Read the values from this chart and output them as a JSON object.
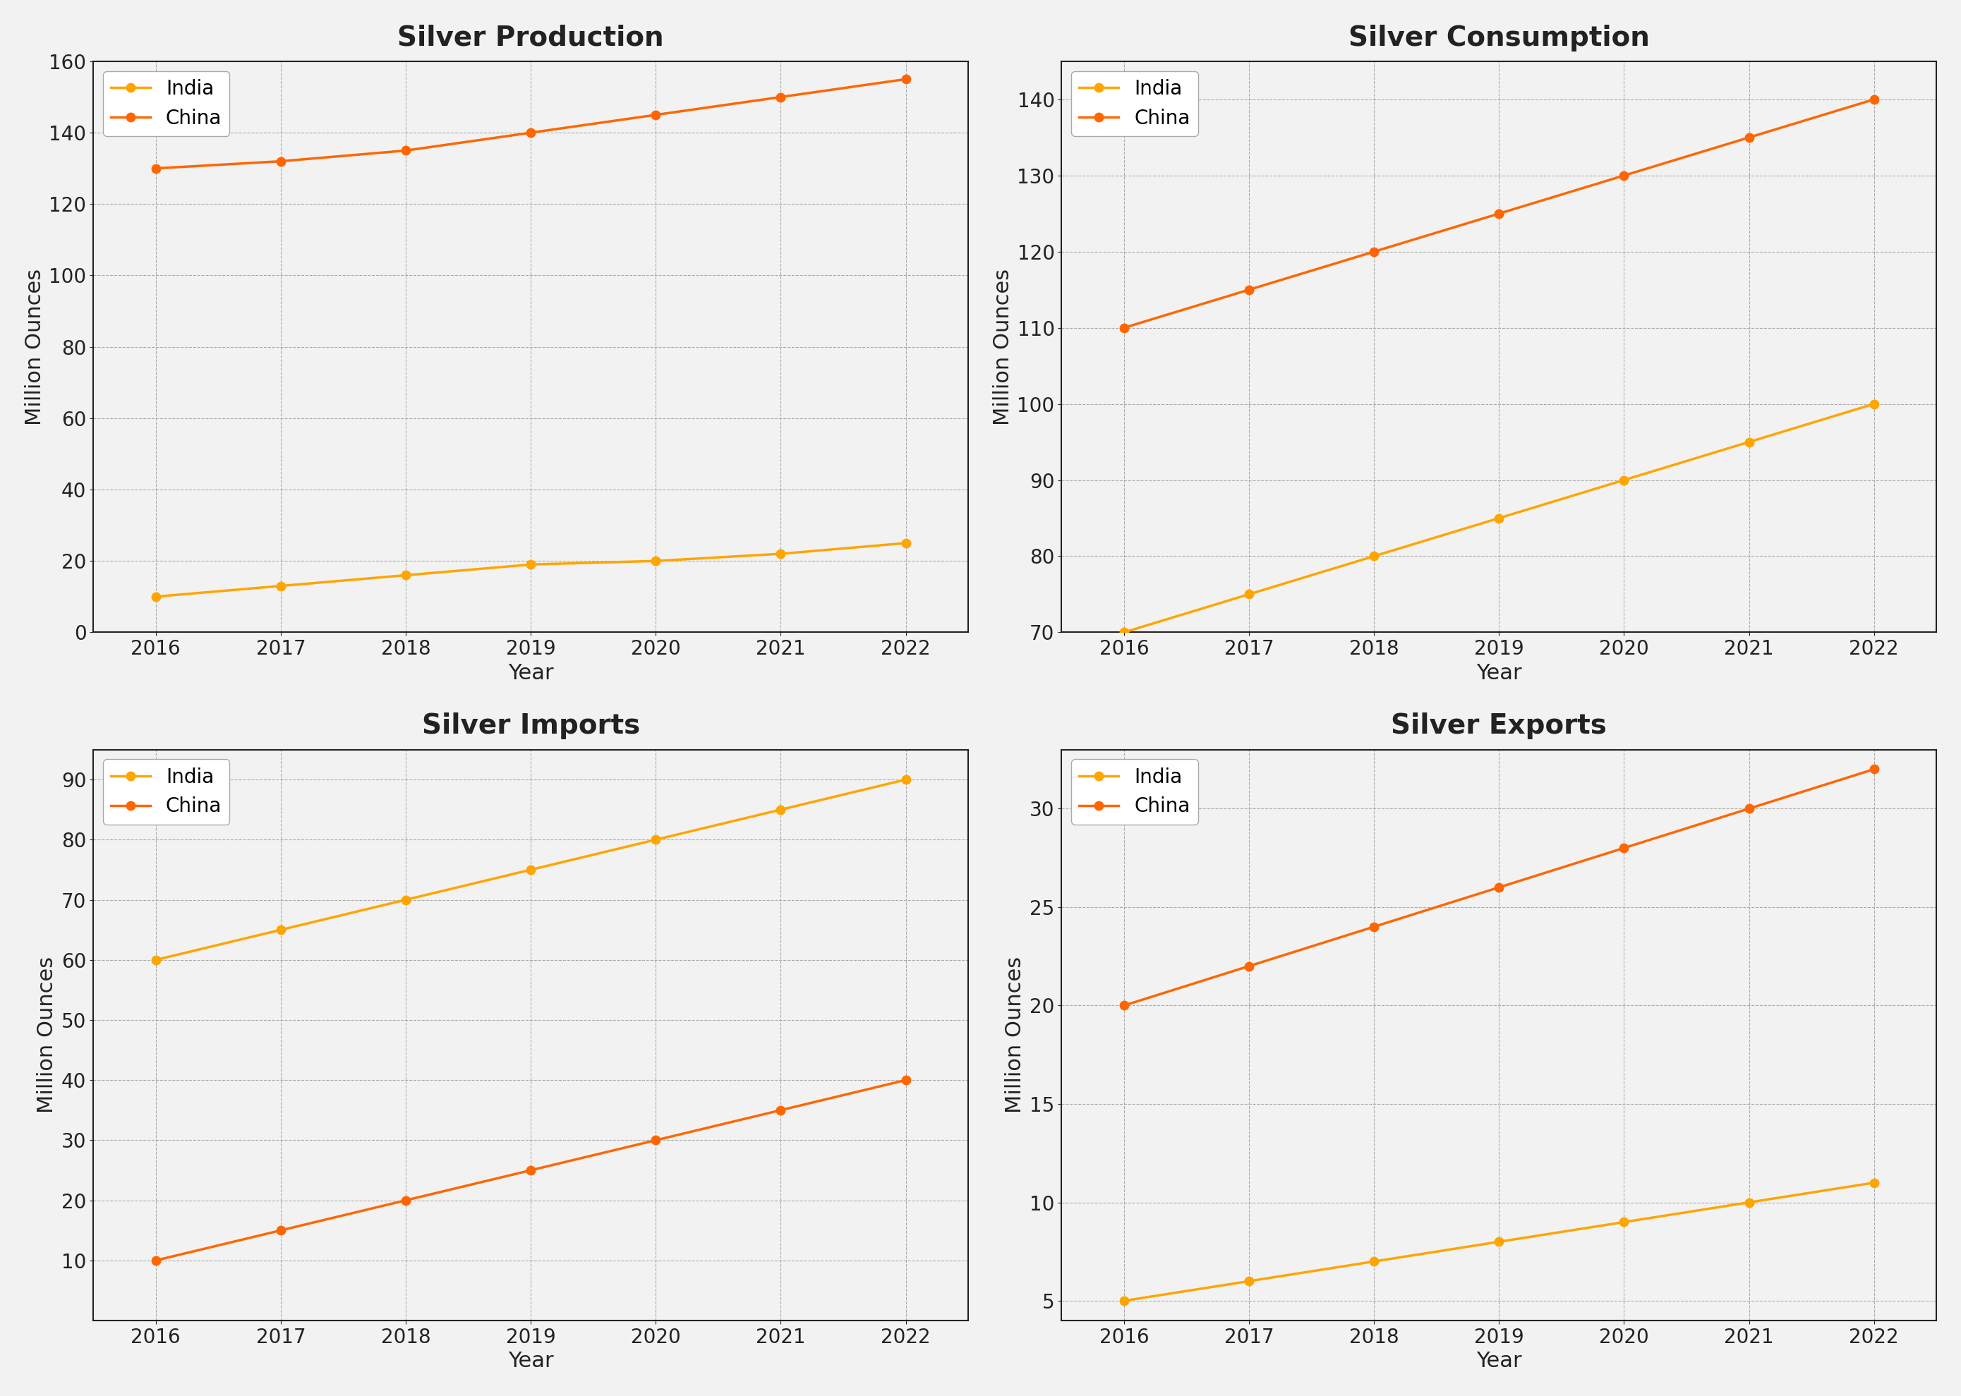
{
  "years": [
    2016,
    2017,
    2018,
    2019,
    2020,
    2021,
    2022
  ],
  "production": {
    "india": [
      10,
      13,
      16,
      19,
      20,
      22,
      25
    ],
    "china": [
      130,
      132,
      135,
      140,
      145,
      150,
      155
    ]
  },
  "consumption": {
    "india": [
      70,
      75,
      80,
      85,
      90,
      95,
      100
    ],
    "china": [
      110,
      115,
      120,
      125,
      130,
      135,
      140
    ]
  },
  "imports": {
    "india": [
      60,
      65,
      70,
      75,
      80,
      85,
      90
    ],
    "china": [
      10,
      15,
      20,
      25,
      30,
      35,
      40
    ]
  },
  "exports": {
    "india": [
      5,
      6,
      7,
      8,
      9,
      10,
      11
    ],
    "china": [
      20,
      22,
      24,
      26,
      28,
      30,
      32
    ]
  },
  "india_color": "#FFA500",
  "china_color": "#FF6600",
  "figure_bg": "#F2F2F2",
  "axes_bg": "#F2F2F2",
  "grid_color": "#AAAAAA",
  "spine_color": "#222222",
  "titles": [
    "Silver Production",
    "Silver Consumption",
    "Silver Imports",
    "Silver Exports"
  ],
  "ylabel": "Million Ounces",
  "xlabel": "Year",
  "ylims": {
    "production": [
      0,
      160
    ],
    "consumption": [
      70,
      145
    ],
    "imports": [
      0,
      95
    ],
    "exports": [
      4,
      33
    ]
  },
  "yticks": {
    "production": [
      0,
      20,
      40,
      60,
      80,
      100,
      120,
      140,
      160
    ],
    "consumption": [
      70,
      80,
      90,
      100,
      110,
      120,
      130,
      140
    ],
    "imports": [
      10,
      20,
      30,
      40,
      50,
      60,
      70,
      80,
      90
    ],
    "exports": [
      5,
      10,
      15,
      20,
      25,
      30
    ]
  },
  "title_fontsize": 28,
  "label_fontsize": 22,
  "tick_fontsize": 20,
  "legend_fontsize": 20,
  "line_width": 2.5,
  "marker_size": 9
}
